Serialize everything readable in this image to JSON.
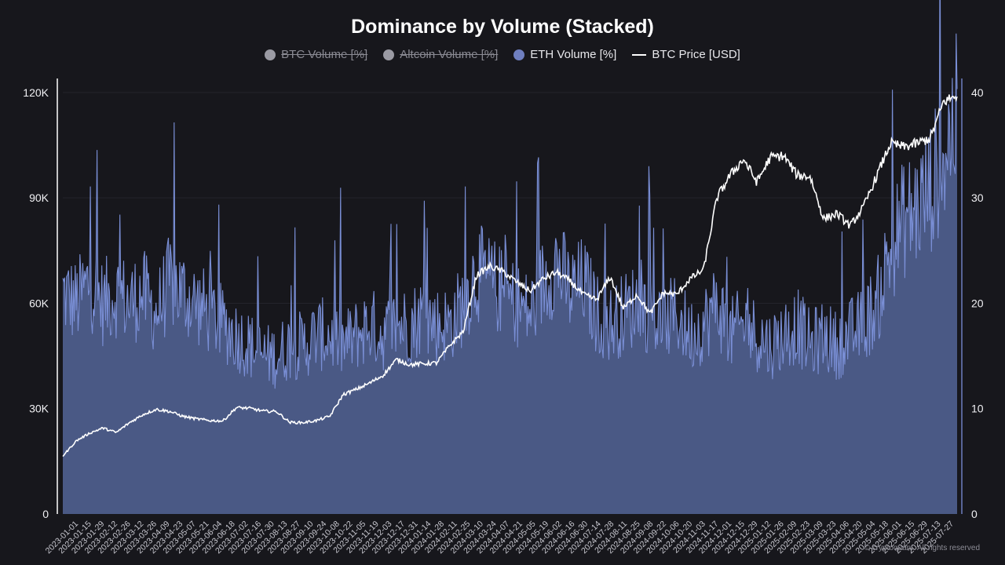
{
  "chart_data": {
    "type": "area",
    "title": "Dominance by Volume (Stacked)",
    "legend": [
      {
        "name": "BTC Volume [%]",
        "color": "#9a9aa3",
        "marker": "dot",
        "hidden": true
      },
      {
        "name": "Altcoin Volume [%]",
        "color": "#9a9aa3",
        "marker": "dot",
        "hidden": true
      },
      {
        "name": "ETH Volume [%]",
        "color": "#6f7fc0",
        "marker": "dot",
        "hidden": false
      },
      {
        "name": "BTC Price [USD]",
        "color": "#ffffff",
        "marker": "line",
        "hidden": false
      }
    ],
    "legend_position": "top-center",
    "y_left": {
      "ticks": [
        "0",
        "30K",
        "60K",
        "90K",
        "120K"
      ],
      "values": [
        0,
        30000,
        60000,
        90000,
        120000
      ],
      "range": [
        0,
        124000
      ]
    },
    "y_right": {
      "ticks": [
        "0",
        "10",
        "20",
        "30",
        "40"
      ],
      "values": [
        0,
        10,
        20,
        30,
        40
      ],
      "range": [
        0,
        41.33
      ]
    },
    "x_labels": [
      "2023-01-01",
      "2023-01-15",
      "2023-01-29",
      "2023-02-12",
      "2023-02-26",
      "2023-03-12",
      "2023-03-26",
      "2023-04-09",
      "2023-04-23",
      "2023-05-07",
      "2023-05-21",
      "2023-06-04",
      "2023-06-18",
      "2023-07-02",
      "2023-07-16",
      "2023-07-30",
      "2023-08-13",
      "2023-08-27",
      "2023-09-10",
      "2023-09-24",
      "2023-10-08",
      "2023-10-22",
      "2023-11-05",
      "2023-11-19",
      "2023-12-03",
      "2023-12-17",
      "2023-12-31",
      "2024-01-14",
      "2024-01-28",
      "2024-02-11",
      "2024-02-25",
      "2024-03-10",
      "2024-03-24",
      "2024-04-07",
      "2024-04-21",
      "2024-05-05",
      "2024-05-19",
      "2024-06-02",
      "2024-06-16",
      "2024-06-30",
      "2024-07-14",
      "2024-07-28",
      "2024-08-11",
      "2024-08-25",
      "2024-09-08",
      "2024-09-22",
      "2024-10-06",
      "2024-10-20",
      "2024-11-03",
      "2024-11-17",
      "2024-12-01",
      "2024-12-15",
      "2024-12-29",
      "2025-01-12",
      "2025-01-26",
      "2025-02-09",
      "2025-02-23",
      "2025-03-09",
      "2025-03-23",
      "2025-04-06",
      "2025-04-20",
      "2025-05-04",
      "2025-05-18",
      "2025-06-01",
      "2025-06-15",
      "2025-06-29",
      "2025-07-13",
      "2025-07-27"
    ],
    "eth_volume_pct": {
      "x": [
        "2023-01-01",
        "2023-01-15",
        "2023-01-29",
        "2023-02-12",
        "2023-02-26",
        "2023-03-12",
        "2023-03-26",
        "2023-04-09",
        "2023-04-23",
        "2023-05-07",
        "2023-05-21",
        "2023-06-04",
        "2023-06-18",
        "2023-07-02",
        "2023-07-16",
        "2023-07-30",
        "2023-08-13",
        "2023-08-27",
        "2023-09-10",
        "2023-09-24",
        "2023-10-08",
        "2023-10-22",
        "2023-11-05",
        "2023-11-19",
        "2023-12-03",
        "2023-12-17",
        "2023-12-31",
        "2024-01-14",
        "2024-01-28",
        "2024-02-11",
        "2024-02-25",
        "2024-03-10",
        "2024-03-24",
        "2024-04-07",
        "2024-04-21",
        "2024-05-05",
        "2024-05-19",
        "2024-06-02",
        "2024-06-16",
        "2024-06-30",
        "2024-07-14",
        "2024-07-28",
        "2024-08-11",
        "2024-08-25",
        "2024-09-08",
        "2024-09-22",
        "2024-10-06",
        "2024-10-20",
        "2024-11-03",
        "2024-11-17",
        "2024-12-01",
        "2024-12-15",
        "2024-12-29",
        "2025-01-12",
        "2025-01-26",
        "2025-02-09",
        "2025-02-23",
        "2025-03-09",
        "2025-03-23",
        "2025-04-06",
        "2025-04-20",
        "2025-05-04",
        "2025-05-18",
        "2025-06-01",
        "2025-06-15",
        "2025-06-29",
        "2025-07-13",
        "2025-07-27"
      ],
      "y": [
        21,
        20,
        22,
        20,
        21,
        20,
        21,
        19,
        22,
        21,
        20,
        19,
        18,
        17,
        16,
        15,
        15,
        16,
        16,
        17,
        17,
        16,
        17,
        18,
        17,
        18,
        18,
        19,
        18,
        18,
        20,
        23,
        22,
        21,
        20,
        19,
        22,
        24,
        21,
        22,
        19,
        18,
        19,
        20,
        19,
        18,
        19,
        17,
        18,
        20,
        17,
        18,
        17,
        16,
        17,
        18,
        16,
        17,
        16,
        17,
        18,
        20,
        25,
        28,
        29,
        31,
        34,
        38
      ]
    },
    "btc_price_usd": {
      "x": [
        "2023-01-01",
        "2023-01-15",
        "2023-01-29",
        "2023-02-12",
        "2023-02-26",
        "2023-03-12",
        "2023-03-26",
        "2023-04-09",
        "2023-04-23",
        "2023-05-07",
        "2023-05-21",
        "2023-06-04",
        "2023-06-18",
        "2023-07-02",
        "2023-07-16",
        "2023-07-30",
        "2023-08-13",
        "2023-08-27",
        "2023-09-10",
        "2023-09-24",
        "2023-10-08",
        "2023-10-22",
        "2023-11-05",
        "2023-11-19",
        "2023-12-03",
        "2023-12-17",
        "2023-12-31",
        "2024-01-14",
        "2024-01-28",
        "2024-02-11",
        "2024-02-25",
        "2024-03-10",
        "2024-03-24",
        "2024-04-07",
        "2024-04-21",
        "2024-05-05",
        "2024-05-19",
        "2024-06-02",
        "2024-06-16",
        "2024-06-30",
        "2024-07-14",
        "2024-07-28",
        "2024-08-11",
        "2024-08-25",
        "2024-09-08",
        "2024-09-22",
        "2024-10-06",
        "2024-10-20",
        "2024-11-03",
        "2024-11-17",
        "2024-12-01",
        "2024-12-15",
        "2024-12-29",
        "2025-01-12",
        "2025-01-26",
        "2025-02-09",
        "2025-02-23",
        "2025-03-09",
        "2025-03-23",
        "2025-04-06",
        "2025-04-20",
        "2025-05-04",
        "2025-05-18",
        "2025-06-01",
        "2025-06-15",
        "2025-06-29",
        "2025-07-13",
        "2025-07-27"
      ],
      "y": [
        16500,
        20800,
        23000,
        24500,
        23200,
        26000,
        28300,
        29800,
        29200,
        27800,
        27100,
        26600,
        26500,
        30300,
        30100,
        29300,
        29200,
        26100,
        26000,
        26600,
        27800,
        34000,
        35500,
        37300,
        39500,
        44000,
        42500,
        42800,
        43000,
        48000,
        52000,
        68000,
        70500,
        69000,
        66000,
        63500,
        67000,
        68800,
        66300,
        62500,
        61000,
        67500,
        58500,
        62500,
        57000,
        63000,
        62500,
        67000,
        69500,
        90000,
        96500,
        101000,
        94500,
        101500,
        102000,
        96500,
        96000,
        84000,
        85500,
        82000,
        87500,
        96500,
        105500,
        104500,
        105500,
        107000,
        117500,
        119000
      ]
    }
  },
  "watermark": "© cryptoquant. All rights reserved"
}
